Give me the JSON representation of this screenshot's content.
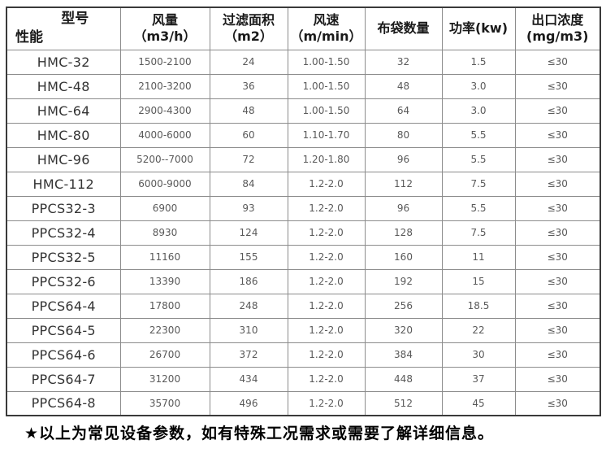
{
  "table": {
    "corner": {
      "top": "型号",
      "bottom": "性能"
    },
    "headers": [
      {
        "line1": "风量",
        "line2": "（m3/h）"
      },
      {
        "line1": "过滤面积",
        "line2": "（m2）"
      },
      {
        "line1": "风速",
        "line2": "（m/min）"
      },
      {
        "line1": "布袋数量",
        "line2": ""
      },
      {
        "line1": "功率(kw)",
        "line2": ""
      },
      {
        "line1": "出口浓度",
        "line2": "(mg/m3)"
      }
    ]
  },
  "footer": {
    "note": "★以上为常见设备参数，如有特殊工况需求或需要了解详细信息。"
  },
  "colors": {
    "border_outer": "#3a3a3a",
    "border_inner": "#8c8c8c",
    "header_text": "#1a1a1a",
    "model_text": "#333333",
    "value_text": "#595959",
    "background": "#ffffff"
  },
  "chart_data": {
    "type": "table",
    "title": "",
    "columns": [
      "型号/性能",
      "风量（m3/h）",
      "过滤面积（m2）",
      "风速（m/min）",
      "布袋数量",
      "功率(kw)",
      "出口浓度(mg/m3)"
    ],
    "rows": [
      [
        "HMC-32",
        "1500-2100",
        "24",
        "1.00-1.50",
        "32",
        "1.5",
        "≤30"
      ],
      [
        "HMC-48",
        "2100-3200",
        "36",
        "1.00-1.50",
        "48",
        "3.0",
        "≤30"
      ],
      [
        "HMC-64",
        "2900-4300",
        "48",
        "1.00-1.50",
        "64",
        "3.0",
        "≤30"
      ],
      [
        "HMC-80",
        "4000-6000",
        "60",
        "1.10-1.70",
        "80",
        "5.5",
        "≤30"
      ],
      [
        "HMC-96",
        "5200--7000",
        "72",
        "1.20-1.80",
        "96",
        "5.5",
        "≤30"
      ],
      [
        "HMC-112",
        "6000-9000",
        "84",
        "1.2-2.0",
        "112",
        "7.5",
        "≤30"
      ],
      [
        "PPCS32-3",
        "6900",
        "93",
        "1.2-2.0",
        "96",
        "5.5",
        "≤30"
      ],
      [
        "PPCS32-4",
        "8930",
        "124",
        "1.2-2.0",
        "128",
        "7.5",
        "≤30"
      ],
      [
        "PPCS32-5",
        "11160",
        "155",
        "1.2-2.0",
        "160",
        "11",
        "≤30"
      ],
      [
        "PPCS32-6",
        "13390",
        "186",
        "1.2-2.0",
        "192",
        "15",
        "≤30"
      ],
      [
        "PPCS64-4",
        "17800",
        "248",
        "1.2-2.0",
        "256",
        "18.5",
        "≤30"
      ],
      [
        "PPCS64-5",
        "22300",
        "310",
        "1.2-2.0",
        "320",
        "22",
        "≤30"
      ],
      [
        "PPCS64-6",
        "26700",
        "372",
        "1.2-2.0",
        "384",
        "30",
        "≤30"
      ],
      [
        "PPCS64-7",
        "31200",
        "434",
        "1.2-2.0",
        "448",
        "37",
        "≤30"
      ],
      [
        "PPCS64-8",
        "35700",
        "496",
        "1.2-2.0",
        "512",
        "45",
        "≤30"
      ]
    ]
  }
}
